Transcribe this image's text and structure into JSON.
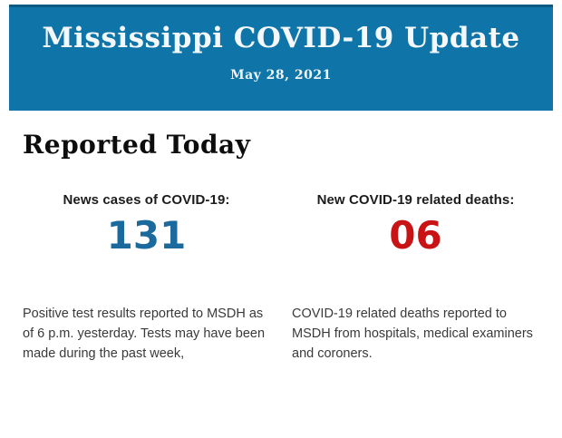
{
  "banner": {
    "title": "Mississippi COVID-19 Update",
    "date": "May 28, 2021",
    "background_color": "#0f74a8",
    "top_edge_color": "#0a5b84",
    "text_color": "#f4f8fa"
  },
  "main": {
    "heading": "Reported Today",
    "stats": [
      {
        "label": "News cases of COVID-19:",
        "value": "131",
        "value_color": "#1b6a9e",
        "description": "Positive test results reported to MSDH as of 6 p.m. yesterday. Tests may have been made during the past week,"
      },
      {
        "label": "New COVID-19 related deaths:",
        "value": "06",
        "value_color": "#c91416",
        "description": "COVID-19 related deaths reported to MSDH from hospitals, medical examiners and coroners."
      }
    ]
  }
}
